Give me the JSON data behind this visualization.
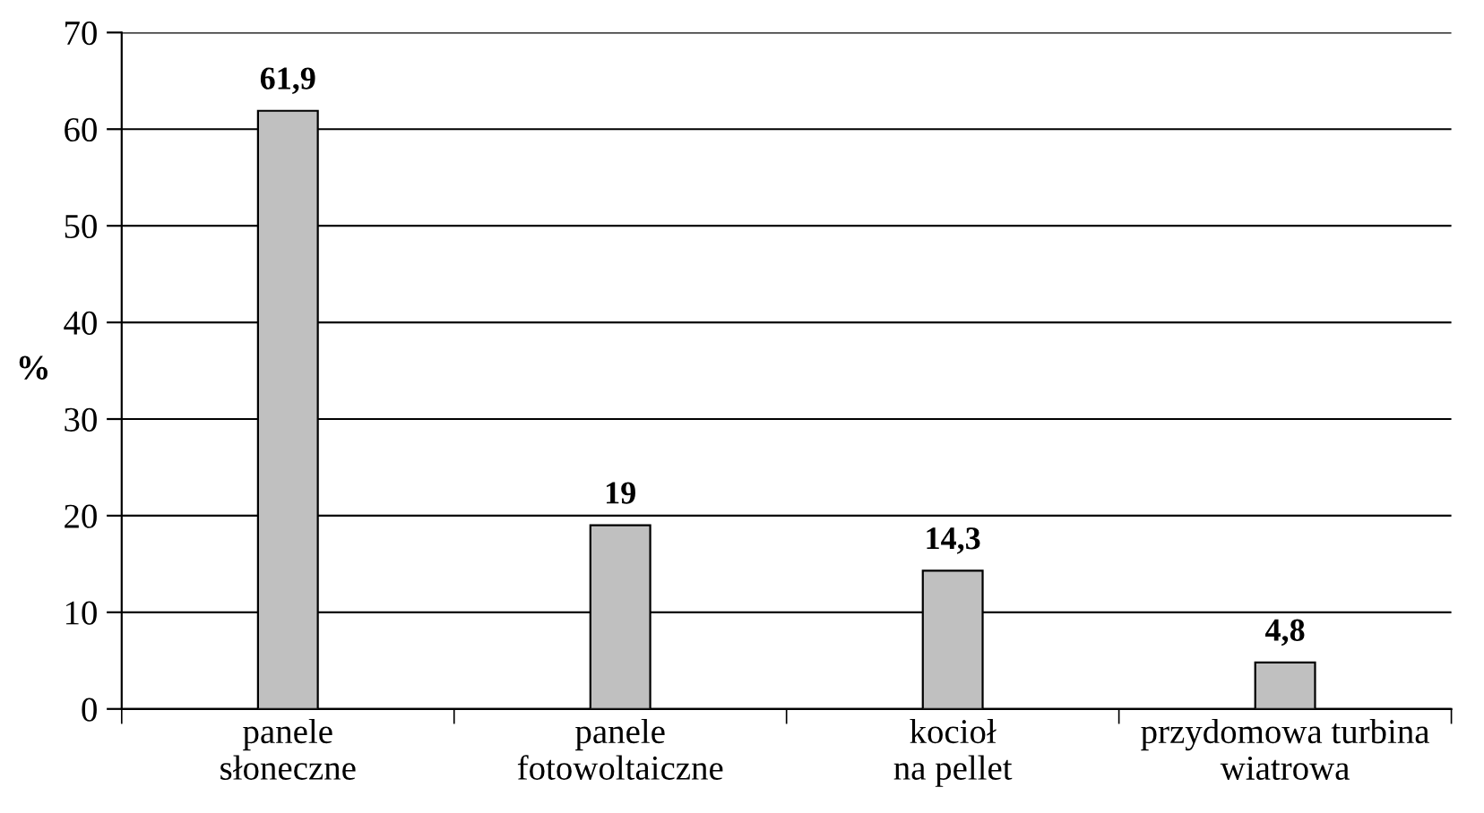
{
  "chart_data": {
    "type": "bar",
    "categories": [
      "panele\nsłoneczne",
      "panele\nfotowoltaiczne",
      "kocioł\nna pellet",
      "przydomowa turbina\nwiatrowa"
    ],
    "values": [
      61.9,
      19,
      14.3,
      4.8
    ],
    "value_labels": [
      "61,9",
      "19",
      "14,3",
      "4,8"
    ],
    "color": "#c0c0c0",
    "ylabel": "%",
    "ylim": [
      0,
      70
    ],
    "yticks": [
      0,
      10,
      20,
      30,
      40,
      50,
      60,
      70
    ],
    "grid": "y",
    "legend": false
  }
}
